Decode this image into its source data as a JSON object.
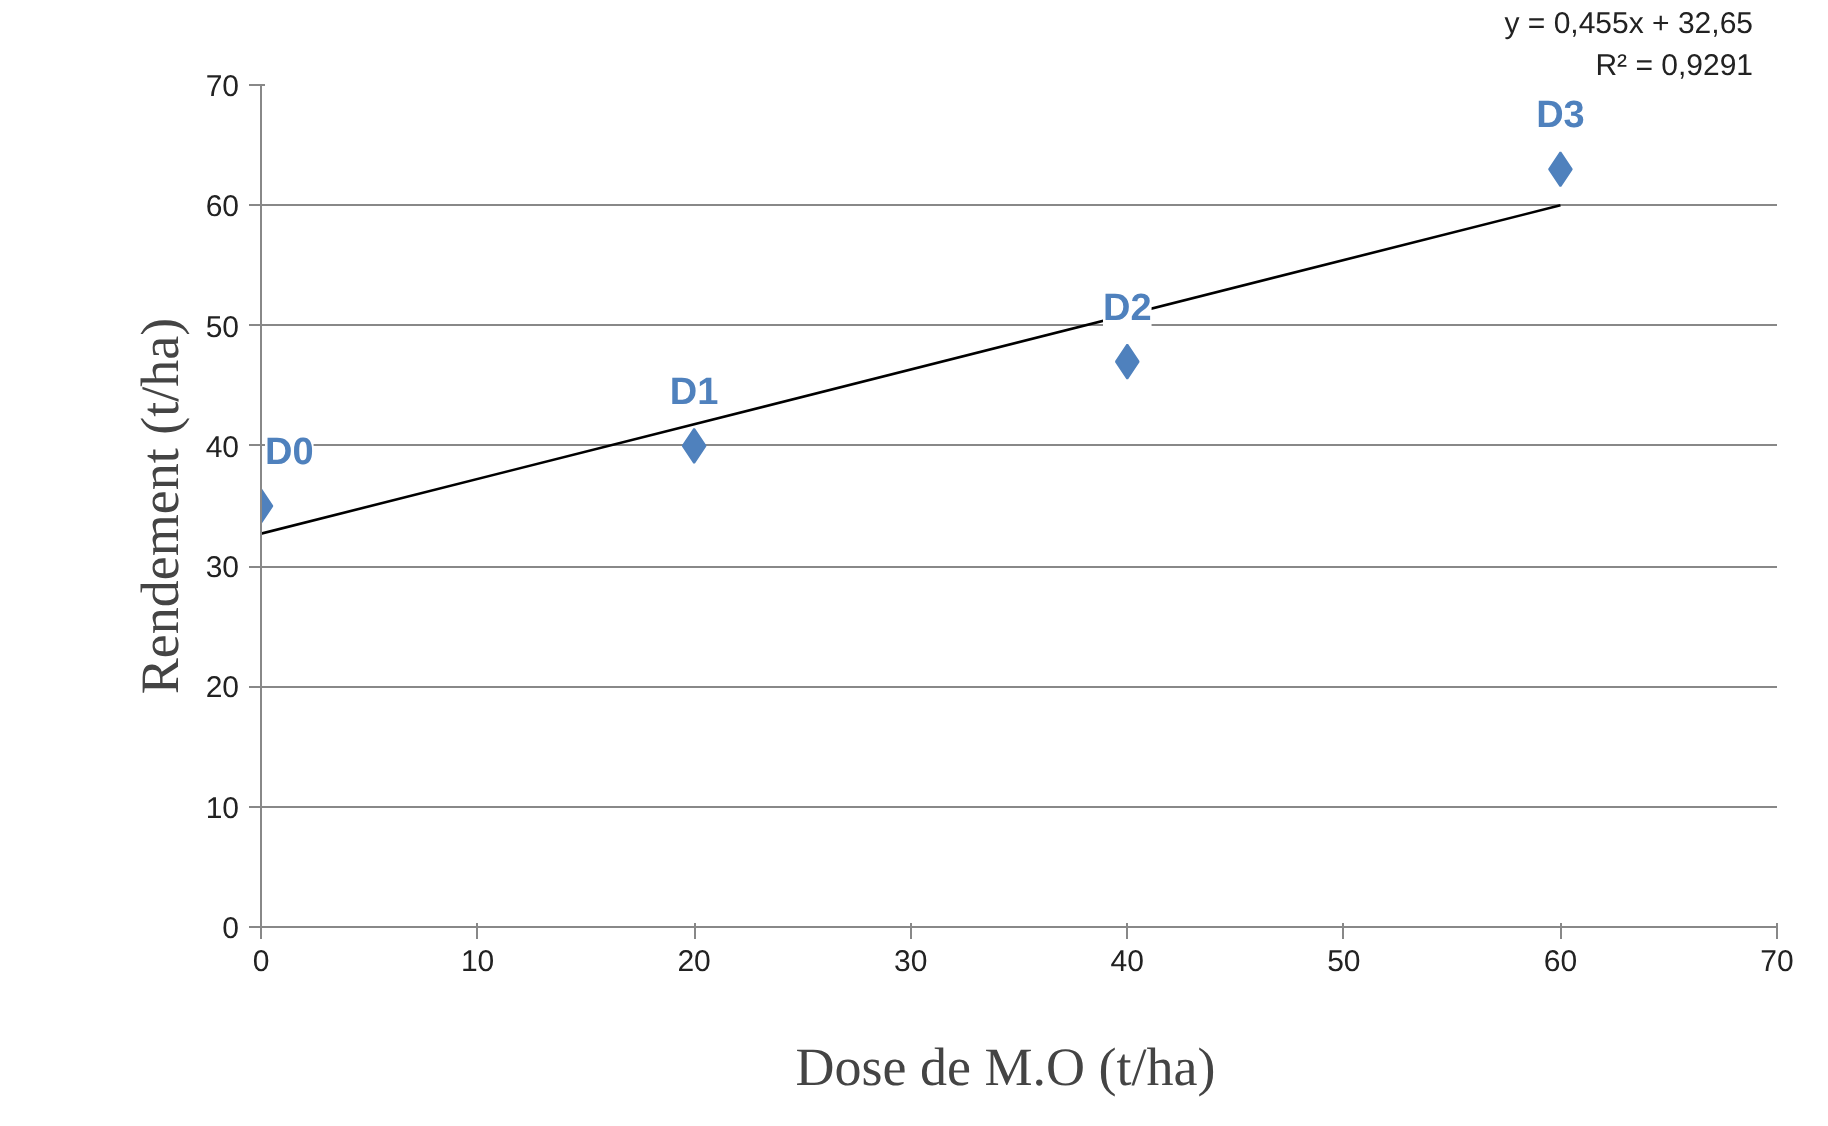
{
  "chart_data": {
    "type": "scatter",
    "xlabel": "Dose de  M.O  (t/ha)",
    "ylabel": "Rendement (t/ha)",
    "xlim": [
      0,
      70
    ],
    "ylim": [
      0,
      70
    ],
    "xticks": [
      0,
      10,
      20,
      30,
      40,
      50,
      60,
      70
    ],
    "yticks": [
      0,
      10,
      20,
      30,
      40,
      50,
      60,
      70
    ],
    "grid": "y",
    "series": [
      {
        "color": "#4f81bd",
        "marker": "diamond",
        "x": [
          0,
          20,
          40,
          60
        ],
        "values": [
          35,
          40,
          47,
          63
        ]
      },
      {
        "type": "line",
        "color": "#000000",
        "x": [
          0,
          60
        ],
        "values": [
          32.7,
          60
        ]
      }
    ],
    "annotations": [
      {
        "text": "D0",
        "x": 0,
        "y": 35
      },
      {
        "text": "D1",
        "x": 20,
        "y": 40
      },
      {
        "text": "D2",
        "x": 40,
        "y": 47
      },
      {
        "text": "D3",
        "x": 60,
        "y": 63
      },
      "y = 0,455x + 32,65",
      "R² = 0,9291"
    ]
  }
}
